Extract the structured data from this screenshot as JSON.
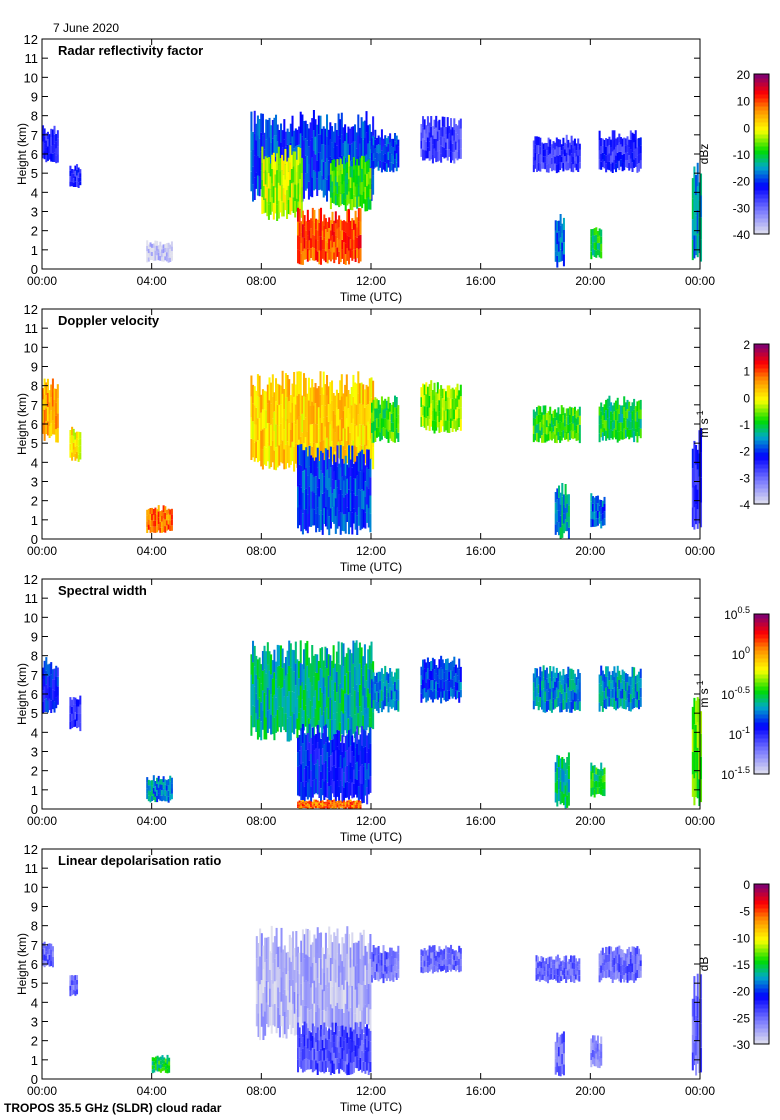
{
  "date": "7 June 2020",
  "footer": "TROPOS 35.5 GHz (SLDR) cloud radar",
  "chart_data": [
    {
      "type": "heatmap",
      "title": "Radar reflectivity factor",
      "xlabel": "Time (UTC)",
      "ylabel": "Height (km)",
      "xlim": [
        0,
        24
      ],
      "ylim": [
        0,
        12
      ],
      "xticks": [
        "00:00",
        "04:00",
        "08:00",
        "12:00",
        "16:00",
        "20:00",
        "00:00"
      ],
      "yticks": [
        "0",
        "1",
        "2",
        "3",
        "4",
        "5",
        "6",
        "7",
        "8",
        "9",
        "10",
        "11",
        "12"
      ],
      "colorbar": {
        "unit": "dBz",
        "range": [
          -40,
          20
        ],
        "ticks": [
          "20",
          "10",
          "0",
          "-10",
          "-20",
          "-30",
          "-40"
        ]
      },
      "regions": [
        {
          "t": [
            0.0,
            0.6
          ],
          "z": [
            5.5,
            7.5
          ],
          "v": -25
        },
        {
          "t": [
            1.0,
            1.4
          ],
          "z": [
            4.2,
            5.5
          ],
          "v": -25
        },
        {
          "t": [
            3.8,
            4.7
          ],
          "z": [
            0.3,
            1.5
          ],
          "v": -38
        },
        {
          "t": [
            7.6,
            12.1
          ],
          "z": [
            3.5,
            8.3
          ],
          "v": -20
        },
        {
          "t": [
            8.0,
            9.5
          ],
          "z": [
            2.5,
            6.5
          ],
          "v": -3
        },
        {
          "t": [
            9.3,
            11.6
          ],
          "z": [
            0.2,
            3.2
          ],
          "v": 10
        },
        {
          "t": [
            10.5,
            12.0
          ],
          "z": [
            3.0,
            6.0
          ],
          "v": -8
        },
        {
          "t": [
            12.0,
            13.0
          ],
          "z": [
            5.0,
            7.3
          ],
          "v": -20
        },
        {
          "t": [
            13.8,
            15.3
          ],
          "z": [
            5.5,
            8.0
          ],
          "v": -27
        },
        {
          "t": [
            17.9,
            19.6
          ],
          "z": [
            5.0,
            7.0
          ],
          "v": -26
        },
        {
          "t": [
            18.7,
            19.0
          ],
          "z": [
            0.0,
            3.0
          ],
          "v": -18
        },
        {
          "t": [
            20.3,
            21.8
          ],
          "z": [
            5.0,
            7.3
          ],
          "v": -25
        },
        {
          "t": [
            20.0,
            20.4
          ],
          "z": [
            0.5,
            2.3
          ],
          "v": -10
        },
        {
          "t": [
            23.7,
            24.0
          ],
          "z": [
            0.0,
            6.0
          ],
          "v": -15
        }
      ]
    },
    {
      "type": "heatmap",
      "title": "Doppler velocity",
      "xlabel": "Time (UTC)",
      "ylabel": "Height (km)",
      "xlim": [
        0,
        24
      ],
      "ylim": [
        0,
        12
      ],
      "xticks": [
        "00:00",
        "04:00",
        "08:00",
        "12:00",
        "16:00",
        "20:00",
        "00:00"
      ],
      "yticks": [
        "0",
        "1",
        "2",
        "3",
        "4",
        "5",
        "6",
        "7",
        "8",
        "9",
        "10",
        "11",
        "12"
      ],
      "colorbar": {
        "unit": "m s-1",
        "range": [
          -4,
          2
        ],
        "ticks": [
          "2",
          "1",
          "0",
          "-1",
          "-2",
          "-3",
          "-4"
        ]
      },
      "regions": [
        {
          "t": [
            0.0,
            0.6
          ],
          "z": [
            5.0,
            8.5
          ],
          "v": 0.5
        },
        {
          "t": [
            1.0,
            1.4
          ],
          "z": [
            4.0,
            6.0
          ],
          "v": 0.0
        },
        {
          "t": [
            3.8,
            4.7
          ],
          "z": [
            0.3,
            1.8
          ],
          "v": 0.8
        },
        {
          "t": [
            7.6,
            12.1
          ],
          "z": [
            3.5,
            8.8
          ],
          "v": 0.2
        },
        {
          "t": [
            9.3,
            12.0
          ],
          "z": [
            0.2,
            5.0
          ],
          "v": -2.0
        },
        {
          "t": [
            12.0,
            13.0
          ],
          "z": [
            5.0,
            7.5
          ],
          "v": -0.8
        },
        {
          "t": [
            13.8,
            15.3
          ],
          "z": [
            5.5,
            8.3
          ],
          "v": -0.5
        },
        {
          "t": [
            17.9,
            19.6
          ],
          "z": [
            5.0,
            7.0
          ],
          "v": -0.8
        },
        {
          "t": [
            18.7,
            19.2
          ],
          "z": [
            0.0,
            3.0
          ],
          "v": -1.5
        },
        {
          "t": [
            20.3,
            21.8
          ],
          "z": [
            5.0,
            7.5
          ],
          "v": -1.0
        },
        {
          "t": [
            20.0,
            20.5
          ],
          "z": [
            0.5,
            2.5
          ],
          "v": -1.8
        },
        {
          "t": [
            23.7,
            24.0
          ],
          "z": [
            0.0,
            6.0
          ],
          "v": -2.5
        }
      ]
    },
    {
      "type": "heatmap",
      "title": "Spectral width",
      "xlabel": "Time (UTC)",
      "ylabel": "Height (km)",
      "xlim": [
        0,
        24
      ],
      "ylim": [
        0,
        12
      ],
      "xticks": [
        "00:00",
        "04:00",
        "08:00",
        "12:00",
        "16:00",
        "20:00",
        "00:00"
      ],
      "yticks": [
        "0",
        "1",
        "2",
        "3",
        "4",
        "5",
        "6",
        "7",
        "8",
        "9",
        "10",
        "11",
        "12"
      ],
      "colorbar": {
        "unit": "m s-1",
        "scale": "log10",
        "range": [
          -1.5,
          0.5
        ],
        "ticks": [
          {
            "base": "10",
            "exp": "0.5"
          },
          {
            "base": "10",
            "exp": "0"
          },
          {
            "base": "10",
            "exp": "-0.5"
          },
          {
            "base": "10",
            "exp": "-1"
          },
          {
            "base": "10",
            "exp": "-1.5"
          }
        ]
      },
      "regions": [
        {
          "t": [
            0.0,
            0.6
          ],
          "z": [
            5.0,
            8.0
          ],
          "v": -0.9
        },
        {
          "t": [
            1.0,
            1.4
          ],
          "z": [
            4.0,
            6.0
          ],
          "v": -1.0
        },
        {
          "t": [
            3.8,
            4.7
          ],
          "z": [
            0.3,
            1.8
          ],
          "v": -0.7
        },
        {
          "t": [
            7.6,
            12.1
          ],
          "z": [
            3.5,
            8.8
          ],
          "v": -0.6
        },
        {
          "t": [
            9.3,
            12.0
          ],
          "z": [
            0.2,
            4.5
          ],
          "v": -0.9
        },
        {
          "t": [
            9.3,
            11.6
          ],
          "z": [
            0.0,
            0.5
          ],
          "v": 0.1
        },
        {
          "t": [
            12.0,
            13.0
          ],
          "z": [
            5.0,
            7.5
          ],
          "v": -0.7
        },
        {
          "t": [
            13.8,
            15.3
          ],
          "z": [
            5.5,
            8.0
          ],
          "v": -0.8
        },
        {
          "t": [
            17.9,
            19.6
          ],
          "z": [
            5.0,
            7.5
          ],
          "v": -0.7
        },
        {
          "t": [
            18.7,
            19.2
          ],
          "z": [
            0.0,
            3.0
          ],
          "v": -0.6
        },
        {
          "t": [
            20.3,
            21.8
          ],
          "z": [
            5.0,
            7.5
          ],
          "v": -0.7
        },
        {
          "t": [
            20.0,
            20.5
          ],
          "z": [
            0.5,
            2.5
          ],
          "v": -0.5
        },
        {
          "t": [
            23.7,
            24.0
          ],
          "z": [
            0.0,
            6.0
          ],
          "v": -0.4
        }
      ]
    },
    {
      "type": "heatmap",
      "title": "Linear depolarisation ratio",
      "xlabel": "Time (UTC)",
      "ylabel": "Height (km)",
      "xlim": [
        0,
        24
      ],
      "ylim": [
        0,
        12
      ],
      "xticks": [
        "00:00",
        "04:00",
        "08:00",
        "12:00",
        "16:00",
        "20:00",
        "00:00"
      ],
      "yticks": [
        "0",
        "1",
        "2",
        "3",
        "4",
        "5",
        "6",
        "7",
        "8",
        "9",
        "10",
        "11",
        "12"
      ],
      "colorbar": {
        "unit": "dB",
        "range": [
          -30,
          0
        ],
        "ticks": [
          "0",
          "-5",
          "-10",
          "-15",
          "-20",
          "-25",
          "-30"
        ]
      },
      "regions": [
        {
          "t": [
            0.0,
            0.4
          ],
          "z": [
            5.8,
            7.3
          ],
          "v": -25
        },
        {
          "t": [
            1.0,
            1.3
          ],
          "z": [
            4.3,
            5.5
          ],
          "v": -25
        },
        {
          "t": [
            4.0,
            4.6
          ],
          "z": [
            0.3,
            1.3
          ],
          "v": -15
        },
        {
          "t": [
            7.8,
            12.0
          ],
          "z": [
            2.0,
            8.0
          ],
          "v": -28
        },
        {
          "t": [
            9.3,
            12.0
          ],
          "z": [
            0.2,
            3.0
          ],
          "v": -24
        },
        {
          "t": [
            12.0,
            13.0
          ],
          "z": [
            5.0,
            7.0
          ],
          "v": -25
        },
        {
          "t": [
            13.8,
            15.3
          ],
          "z": [
            5.5,
            7.0
          ],
          "v": -25
        },
        {
          "t": [
            18.0,
            19.6
          ],
          "z": [
            5.0,
            6.5
          ],
          "v": -25
        },
        {
          "t": [
            18.7,
            19.0
          ],
          "z": [
            0.0,
            2.5
          ],
          "v": -25
        },
        {
          "t": [
            20.3,
            21.8
          ],
          "z": [
            5.0,
            7.0
          ],
          "v": -25
        },
        {
          "t": [
            20.0,
            20.4
          ],
          "z": [
            0.5,
            2.3
          ],
          "v": -26
        },
        {
          "t": [
            23.7,
            24.0
          ],
          "z": [
            0.0,
            5.5
          ],
          "v": -25
        }
      ]
    }
  ]
}
